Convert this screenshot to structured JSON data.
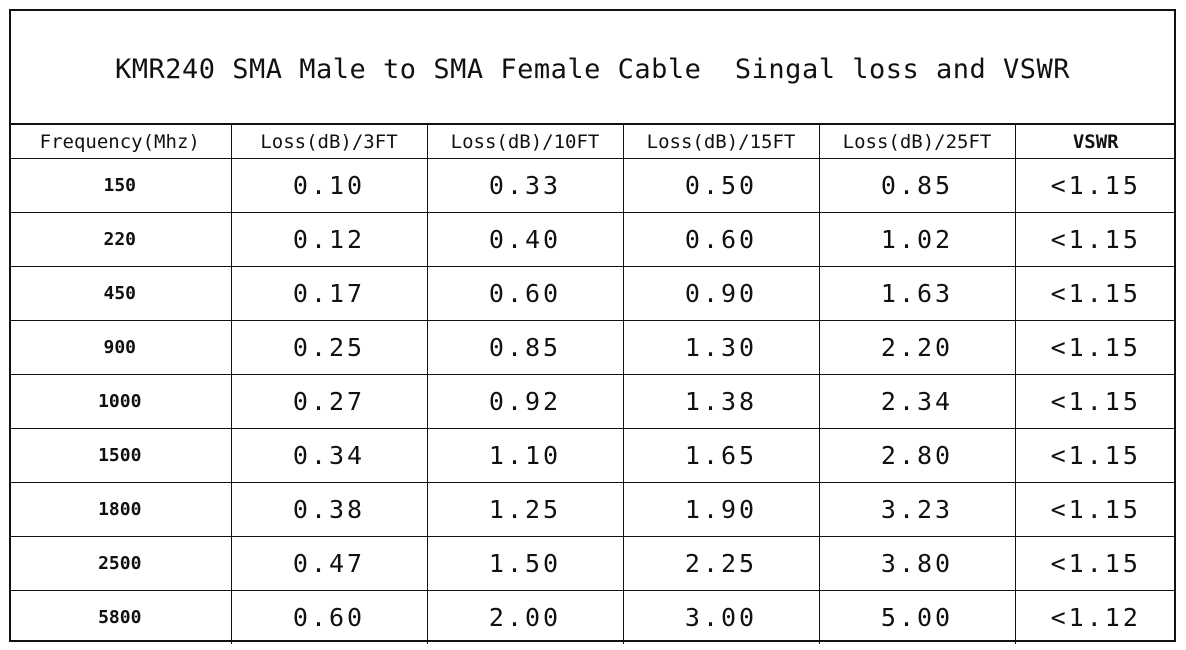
{
  "title": "KMR240 SMA Male to SMA Female Cable  Singal loss and VSWR",
  "table": {
    "headers": [
      "Frequency(Mhz)",
      "Loss(dB)/3FT",
      "Loss(dB)/10FT",
      "Loss(dB)/15FT",
      "Loss(dB)/25FT",
      "VSWR"
    ],
    "rows": [
      [
        "150",
        "0.10",
        "0.33",
        "0.50",
        "0.85",
        "<1.15"
      ],
      [
        "220",
        "0.12",
        "0.40",
        "0.60",
        "1.02",
        "<1.15"
      ],
      [
        "450",
        "0.17",
        "0.60",
        "0.90",
        "1.63",
        "<1.15"
      ],
      [
        "900",
        "0.25",
        "0.85",
        "1.30",
        "2.20",
        "<1.15"
      ],
      [
        "1000",
        "0.27",
        "0.92",
        "1.38",
        "2.34",
        "<1.15"
      ],
      [
        "1500",
        "0.34",
        "1.10",
        "1.65",
        "2.80",
        "<1.15"
      ],
      [
        "1800",
        "0.38",
        "1.25",
        "1.90",
        "3.23",
        "<1.15"
      ],
      [
        "2500",
        "0.47",
        "1.50",
        "2.25",
        "3.80",
        "<1.15"
      ],
      [
        "5800",
        "0.60",
        "2.00",
        "3.00",
        "5.00",
        "<1.12"
      ]
    ]
  }
}
